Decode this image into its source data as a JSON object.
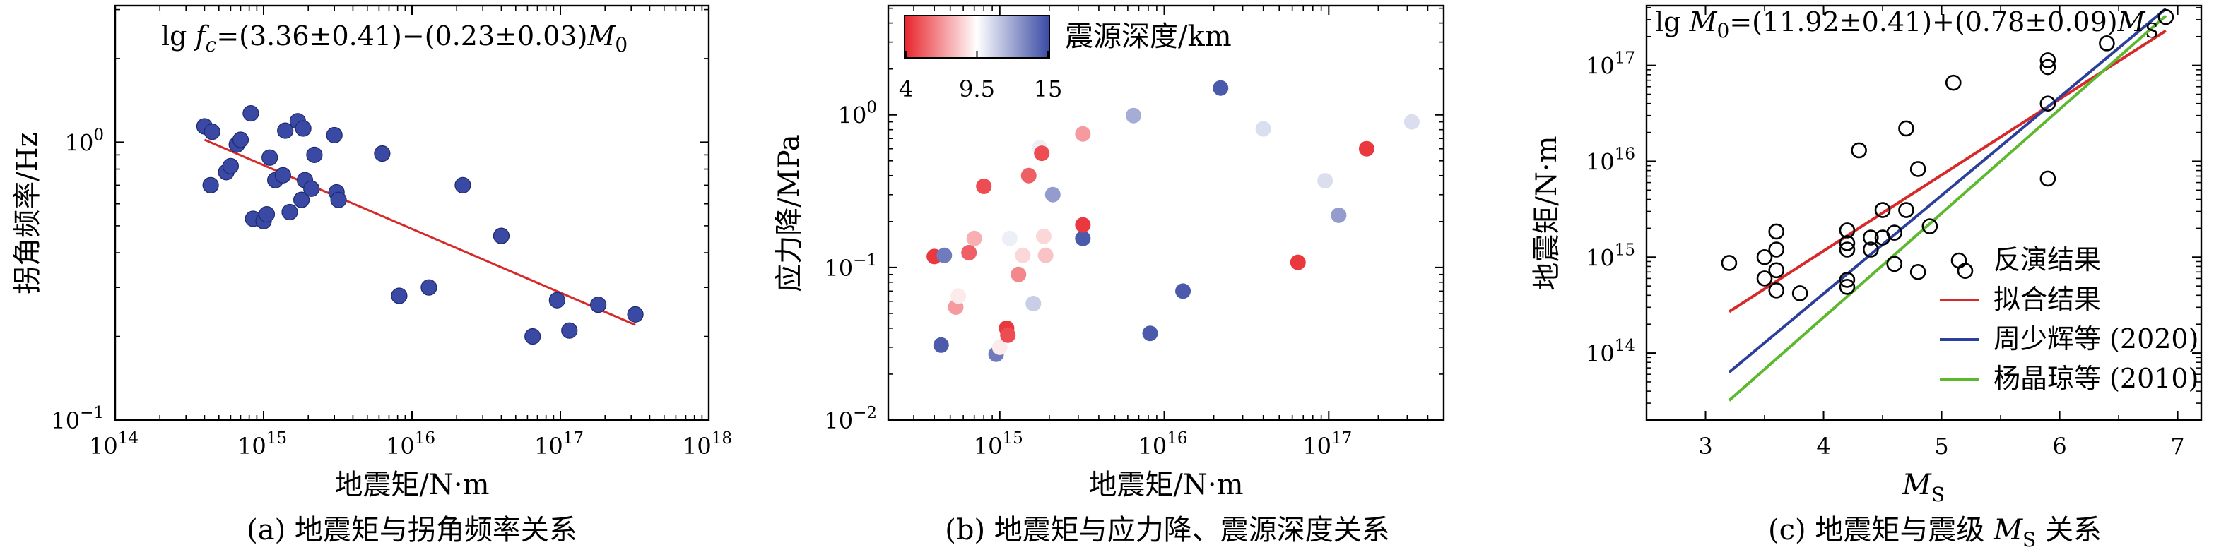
{
  "chart_data": [
    {
      "type": "scatter",
      "panel": "a",
      "caption": "(a) 地震矩与拐角频率关系",
      "xlabel": "地震矩/N·m",
      "ylabel": "拐角频率/Hz",
      "xscale": "log",
      "yscale": "log",
      "xlim": [
        100000000000000.0,
        1e+18
      ],
      "ylim": [
        0.1,
        3.1
      ],
      "xticks": [
        {
          "v": 100000000000000.0,
          "b": "10",
          "e": "14"
        },
        {
          "v": 1000000000000000.0,
          "b": "10",
          "e": "15"
        },
        {
          "v": 1e+16,
          "b": "10",
          "e": "16"
        },
        {
          "v": 1e+17,
          "b": "10",
          "e": "17"
        },
        {
          "v": 1e+18,
          "b": "10",
          "e": "18"
        }
      ],
      "yticks": [
        {
          "v": 0.1,
          "b": "10",
          "e": "−1"
        },
        {
          "v": 1,
          "b": "10",
          "e": "0"
        }
      ],
      "equation": {
        "pre": "lg ",
        "f": "f",
        "sub": "c",
        "post": "=(3.36±0.41)−(0.23±0.03)",
        "M": "M",
        "msub": "0"
      },
      "marker_color": "#3a4aa4",
      "fit_color": "#d62a2a",
      "fit": {
        "x": [
          400000000000000.0,
          3.2e+17
        ],
        "y": [
          1.02,
          0.22
        ]
      },
      "points": [
        [
          400000000000000.0,
          1.14
        ],
        [
          450000000000000.0,
          1.09
        ],
        [
          440000000000000.0,
          0.7
        ],
        [
          560000000000000.0,
          0.78
        ],
        [
          600000000000000.0,
          0.82
        ],
        [
          660000000000000.0,
          0.98
        ],
        [
          700000000000000.0,
          1.02
        ],
        [
          820000000000000.0,
          1.27
        ],
        [
          850000000000000.0,
          0.53
        ],
        [
          1000000000000000.0,
          0.52
        ],
        [
          1050000000000000.0,
          0.55
        ],
        [
          1100000000000000.0,
          0.88
        ],
        [
          1200000000000000.0,
          0.73
        ],
        [
          1350000000000000.0,
          0.76
        ],
        [
          1400000000000000.0,
          1.1
        ],
        [
          1500000000000000.0,
          0.56
        ],
        [
          1700000000000000.0,
          1.19
        ],
        [
          1800000000000000.0,
          0.62
        ],
        [
          1850000000000000.0,
          1.12
        ],
        [
          1900000000000000.0,
          0.73
        ],
        [
          2100000000000000.0,
          0.68
        ],
        [
          2200000000000000.0,
          0.9
        ],
        [
          3000000000000000.0,
          1.06
        ],
        [
          3100000000000000.0,
          0.66
        ],
        [
          3200000000000000.0,
          0.62
        ],
        [
          6300000000000000.0,
          0.91
        ],
        [
          8200000000000000.0,
          0.28
        ],
        [
          1.3e+16,
          0.3
        ],
        [
          2.2e+16,
          0.7
        ],
        [
          4e+16,
          0.46
        ],
        [
          6.5e+16,
          0.2
        ],
        [
          9.5e+16,
          0.27
        ],
        [
          1.15e+17,
          0.21
        ],
        [
          1.8e+17,
          0.26
        ],
        [
          3.2e+17,
          0.24
        ]
      ]
    },
    {
      "type": "scatter",
      "panel": "b",
      "caption": "(b) 地震矩与应力降、震源深度关系",
      "xlabel": "地震矩/N·m",
      "ylabel": "应力降/MPa",
      "xscale": "log",
      "yscale": "log",
      "xlim": [
        210000000000000.0,
        5e+17
      ],
      "ylim": [
        0.01,
        5.2
      ],
      "xticks": [
        {
          "v": 1000000000000000.0,
          "b": "10",
          "e": "15"
        },
        {
          "v": 1e+16,
          "b": "10",
          "e": "16"
        },
        {
          "v": 1e+17,
          "b": "10",
          "e": "17"
        }
      ],
      "yticks": [
        {
          "v": 0.01,
          "b": "10",
          "e": "−2"
        },
        {
          "v": 0.1,
          "b": "10",
          "e": "−1"
        },
        {
          "v": 1,
          "b": "10",
          "e": "0"
        }
      ],
      "colorbar": {
        "label": "震源深度/km",
        "ticks": [
          "4",
          "9.5",
          "15"
        ],
        "min": 4,
        "max": 15,
        "colors": [
          "#e8242c",
          "#ffffff",
          "#3a4aa4"
        ]
      },
      "points": [
        [
          400000000000000.0,
          0.118,
          4.5
        ],
        [
          440000000000000.0,
          0.031,
          14.5
        ],
        [
          460000000000000.0,
          0.12,
          13.5
        ],
        [
          540000000000000.0,
          0.055,
          7
        ],
        [
          560000000000000.0,
          0.065,
          9
        ],
        [
          650000000000000.0,
          0.125,
          5.5
        ],
        [
          700000000000000.0,
          0.155,
          7.5
        ],
        [
          800000000000000.0,
          0.34,
          5
        ],
        [
          950000000000000.0,
          0.027,
          13.5
        ],
        [
          1000000000000000.0,
          0.03,
          9
        ],
        [
          1100000000000000.0,
          0.04,
          4.5
        ],
        [
          1120000000000000.0,
          0.036,
          5
        ],
        [
          1150000000000000.0,
          0.155,
          10
        ],
        [
          1300000000000000.0,
          0.09,
          6.5
        ],
        [
          1380000000000000.0,
          0.12,
          8.5
        ],
        [
          1500000000000000.0,
          0.4,
          5.5
        ],
        [
          1600000000000000.0,
          0.058,
          11
        ],
        [
          1750000000000000.0,
          0.61,
          10
        ],
        [
          1800000000000000.0,
          0.56,
          5
        ],
        [
          1850000000000000.0,
          0.16,
          8.5
        ],
        [
          1900000000000000.0,
          0.12,
          8
        ],
        [
          2100000000000000.0,
          0.3,
          12.5
        ],
        [
          3200000000000000.0,
          0.75,
          7
        ],
        [
          3200000000000000.0,
          0.155,
          14.5
        ],
        [
          3200000000000000.0,
          0.19,
          4.5
        ],
        [
          6500000000000000.0,
          0.99,
          12
        ],
        [
          8200000000000000.0,
          0.037,
          14.5
        ],
        [
          1.3e+16,
          0.07,
          14.5
        ],
        [
          2.2e+16,
          1.5,
          14.5
        ],
        [
          4e+16,
          0.81,
          10.5
        ],
        [
          6.5e+16,
          0.108,
          4.5
        ],
        [
          9.5e+16,
          0.37,
          10.5
        ],
        [
          1.15e+17,
          0.22,
          12.5
        ],
        [
          1.7e+17,
          0.6,
          4.5
        ],
        [
          3.2e+17,
          0.9,
          10.5
        ]
      ]
    },
    {
      "type": "scatter",
      "panel": "c",
      "caption": "(c) 地震矩与震级 M_S 关系",
      "caption_parts": {
        "pre": "(c) 地震矩与震级 ",
        "M": "M",
        "sub": "S",
        "post": " 关系"
      },
      "xlabel": {
        "M": "M",
        "sub": "S"
      },
      "ylabel": "地震矩/N·m",
      "xscale": "linear",
      "yscale": "log",
      "xlim": [
        2.5,
        7.2
      ],
      "ylim": [
        20000000000000.0,
        4.2e+17
      ],
      "xticks": [
        3,
        4,
        5,
        6,
        7
      ],
      "yticks": [
        {
          "v": 100000000000000.0,
          "b": "10",
          "e": "14"
        },
        {
          "v": 1000000000000000.0,
          "b": "10",
          "e": "15"
        },
        {
          "v": 1e+16,
          "b": "10",
          "e": "16"
        },
        {
          "v": 1e+17,
          "b": "10",
          "e": "17"
        }
      ],
      "equation": {
        "pre": "lg ",
        "M": "M",
        "msub": "0",
        "mid": "=(11.92±0.41)+(0.78±0.09)",
        "M2": "M",
        "msub2": "S"
      },
      "legend": [
        {
          "label": "反演结果",
          "kind": "circle"
        },
        {
          "label": "拟合结果",
          "kind": "line",
          "color": "#d62a2a"
        },
        {
          "label": "周少辉等 (2020)",
          "kind": "line",
          "color": "#2b3f9b"
        },
        {
          "label": "杨晶琼等 (2010)",
          "kind": "line",
          "color": "#5cb82d"
        }
      ],
      "lines": [
        {
          "name": "拟合结果",
          "color": "#d62a2a",
          "x": [
            3.2,
            6.9
          ],
          "y": [
            270000000000000.0,
            2.3e+17
          ]
        },
        {
          "name": "周少辉等 (2020)",
          "color": "#2b3f9b",
          "x": [
            3.2,
            6.9
          ],
          "y": [
            63000000000000.0,
            3.9e+17
          ]
        },
        {
          "name": "杨晶琼等 (2010)",
          "color": "#5cb82d",
          "x": [
            3.2,
            6.9
          ],
          "y": [
            32000000000000.0,
            3.3e+17
          ]
        }
      ],
      "points": [
        [
          3.2,
          870000000000000.0
        ],
        [
          3.5,
          600000000000000.0
        ],
        [
          3.5,
          1000000000000000.0
        ],
        [
          3.6,
          450000000000000.0
        ],
        [
          3.6,
          730000000000000.0
        ],
        [
          3.6,
          1200000000000000.0
        ],
        [
          3.6,
          1850000000000000.0
        ],
        [
          3.8,
          420000000000000.0
        ],
        [
          4.2,
          1900000000000000.0
        ],
        [
          4.2,
          1400000000000000.0
        ],
        [
          4.2,
          1200000000000000.0
        ],
        [
          4.2,
          580000000000000.0
        ],
        [
          4.2,
          490000000000000.0
        ],
        [
          4.3,
          1.3e+16
        ],
        [
          4.4,
          1600000000000000.0
        ],
        [
          4.4,
          1200000000000000.0
        ],
        [
          4.5,
          3100000000000000.0
        ],
        [
          4.5,
          1600000000000000.0
        ],
        [
          4.6,
          1800000000000000.0
        ],
        [
          4.6,
          850000000000000.0
        ],
        [
          4.7,
          2.2e+16
        ],
        [
          4.7,
          3100000000000000.0
        ],
        [
          4.8,
          8300000000000000.0
        ],
        [
          4.8,
          700000000000000.0
        ],
        [
          4.9,
          2100000000000000.0
        ],
        [
          5.1,
          6.6e+16
        ],
        [
          5.2,
          720000000000000.0
        ],
        [
          5.9,
          1.13e+17
        ],
        [
          5.9,
          9.6e+16
        ],
        [
          5.9,
          4e+16
        ],
        [
          5.9,
          6600000000000000.0
        ],
        [
          6.4,
          1.7e+17
        ],
        [
          6.9,
          3.2e+17
        ]
      ]
    }
  ]
}
